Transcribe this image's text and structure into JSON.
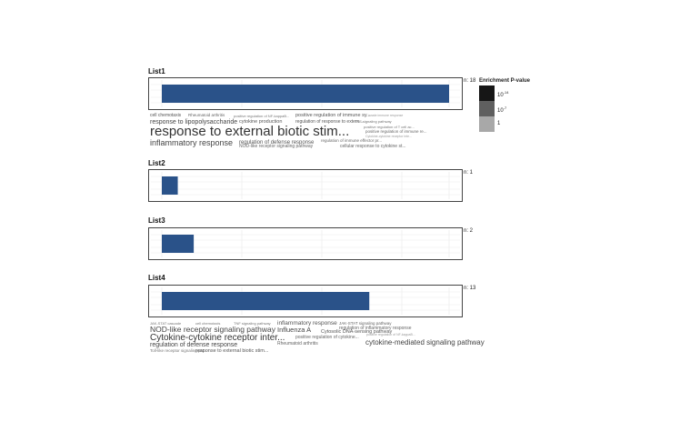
{
  "chart_data": {
    "type": "bar",
    "orientation": "horizontal",
    "bar_color": "#2a5289",
    "xlim": [
      0,
      18
    ],
    "panels": [
      {
        "title": "List1",
        "n_label": "n: 18",
        "value": 18
      },
      {
        "title": "List2",
        "n_label": "n: 1",
        "value": 1
      },
      {
        "title": "List3",
        "n_label": "n: 2",
        "value": 2
      },
      {
        "title": "List4",
        "n_label": "n: 13",
        "value": 13
      }
    ],
    "legend": {
      "title": "Enrichment P-value",
      "items": [
        {
          "base": "10",
          "exp": "-14",
          "color": "#161616"
        },
        {
          "base": "10",
          "exp": "-7",
          "color": "#5f5f5f"
        },
        {
          "base": "1",
          "exp": "",
          "color": "#a8a8a8"
        }
      ]
    }
  },
  "word_clouds": {
    "List1": [
      {
        "text": "cell chemotaxis",
        "size": 5,
        "color": "#555"
      },
      {
        "text": "Rheumatoid arthritis",
        "size": 4.5,
        "color": "#666"
      },
      {
        "text": "positive regulation of NF-kappaB...",
        "size": 4,
        "color": "#777"
      },
      {
        "text": "positive regulation of immune sy...",
        "size": 5.5,
        "color": "#555"
      },
      {
        "text": "innate immune response",
        "size": 3.5,
        "color": "#999"
      },
      {
        "text": "response to lipopolysaccharide",
        "size": 7,
        "color": "#444"
      },
      {
        "text": "cytokine production",
        "size": 5.5,
        "color": "#555"
      },
      {
        "text": "regulation of response to extern...",
        "size": 5,
        "color": "#555"
      },
      {
        "text": "TNF signaling pathway",
        "size": 4,
        "color": "#777"
      },
      {
        "text": "response to external biotic stim...",
        "size": 15,
        "color": "#333"
      },
      {
        "text": "positive regulation of T cell ac...",
        "size": 4,
        "color": "#777"
      },
      {
        "text": "positive regulation of immune re...",
        "size": 4.5,
        "color": "#666"
      },
      {
        "text": "Cytokine-cytokine receptor inte...",
        "size": 3.5,
        "color": "#999"
      },
      {
        "text": "inflammatory response",
        "size": 9,
        "color": "#444"
      },
      {
        "text": "regulation of defense response",
        "size": 6,
        "color": "#555"
      },
      {
        "text": "regulation of immune effector pr...",
        "size": 4.5,
        "color": "#666"
      },
      {
        "text": "NOD-like receptor signaling pathway",
        "size": 5,
        "color": "#666"
      },
      {
        "text": "cellular response to cytokine st...",
        "size": 5,
        "color": "#666"
      }
    ],
    "List4": [
      {
        "text": "JAK-STAT cascade",
        "size": 4,
        "color": "#777"
      },
      {
        "text": "cell chemotaxis",
        "size": 4,
        "color": "#777"
      },
      {
        "text": "TNF signaling pathway",
        "size": 4,
        "color": "#777"
      },
      {
        "text": "inflammatory response",
        "size": 6.5,
        "color": "#555"
      },
      {
        "text": "JAK-STAT signaling pathway",
        "size": 4.5,
        "color": "#666"
      },
      {
        "text": "NOD-like receptor signaling pathway",
        "size": 8.5,
        "color": "#444"
      },
      {
        "text": "Influenza A",
        "size": 7.5,
        "color": "#444"
      },
      {
        "text": "regulation of inflammatory response",
        "size": 5,
        "color": "#666"
      },
      {
        "text": "Cytosolic DNA-sensing pathway",
        "size": 5.5,
        "color": "#555"
      },
      {
        "text": "Cytokine-cytokine receptor inter...",
        "size": 10,
        "color": "#333"
      },
      {
        "text": "positive regulation of cytokine...",
        "size": 5,
        "color": "#666"
      },
      {
        "text": "positive regulation of NF-kappaB...",
        "size": 3.5,
        "color": "#999"
      },
      {
        "text": "cytokine-mediated signaling pathway",
        "size": 8,
        "color": "#444"
      },
      {
        "text": "regulation of defense response",
        "size": 7,
        "color": "#444"
      },
      {
        "text": "Rheumatoid arthritis",
        "size": 5,
        "color": "#666"
      },
      {
        "text": "Toll-like receptor signaling pat...",
        "size": 4.5,
        "color": "#777"
      },
      {
        "text": "response to external biotic stim...",
        "size": 5.5,
        "color": "#555"
      }
    ]
  }
}
